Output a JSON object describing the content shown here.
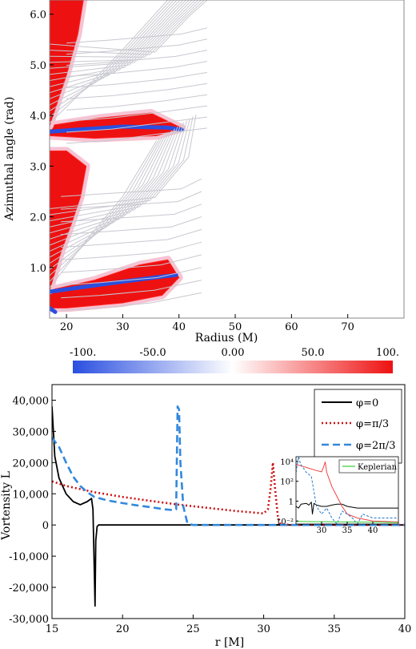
{
  "chart_data": [
    {
      "type": "heatmap",
      "xlabel": "Radius (M)",
      "ylabel": "Azimuthal angle (rad)",
      "xlim": [
        17,
        80
      ],
      "ylim": [
        0,
        6.28
      ],
      "x_ticks": [
        "20",
        "30",
        "40",
        "50",
        "60",
        "70"
      ],
      "x_tick_values": [
        20,
        30,
        40,
        50,
        60,
        70
      ],
      "y_ticks": [
        "1.0",
        "2.0",
        "3.0",
        "4.0",
        "5.0",
        "6.0"
      ],
      "y_tick_values": [
        1,
        2,
        3,
        4,
        5,
        6
      ],
      "colorbar": {
        "range": [
          -100,
          100
        ],
        "ticks": [
          "-100.",
          "-50.0",
          "0.00",
          "50.0",
          "100."
        ],
        "tick_values": [
          -100,
          -50,
          0,
          50,
          100
        ],
        "colors": [
          "#2a4fe0",
          "#ffffff",
          "#ee1111"
        ]
      },
      "regions": [
        {
          "name": "lower-arm",
          "boundary": [
            [
              17,
              0.55
            ],
            [
              25,
              0.75
            ],
            [
              33,
              1.05
            ],
            [
              38,
              1.15
            ],
            [
              40,
              0.8
            ],
            [
              37,
              0.45
            ],
            [
              30,
              0.3
            ],
            [
              20,
              0.2
            ],
            [
              17,
              0.2
            ]
          ],
          "value": 100
        },
        {
          "name": "lower-arm-fill",
          "boundary": [
            [
              17,
              0.55
            ],
            [
              19,
              1.3
            ],
            [
              21,
              1.9
            ],
            [
              22.5,
              2.4
            ],
            [
              23.5,
              3.0
            ],
            [
              20,
              3.3
            ],
            [
              17,
              3.3
            ]
          ],
          "value": 100
        },
        {
          "name": "upper-arm",
          "boundary": [
            [
              17,
              3.8
            ],
            [
              26,
              3.95
            ],
            [
              35,
              4.05
            ],
            [
              40.5,
              3.75
            ],
            [
              36,
              3.6
            ],
            [
              25,
              3.55
            ],
            [
              17,
              3.6
            ]
          ],
          "value": 100
        },
        {
          "name": "upper-arm-fill",
          "boundary": [
            [
              17,
              3.8
            ],
            [
              20,
              4.8
            ],
            [
              22,
              5.6
            ],
            [
              23,
              6.28
            ],
            [
              17,
              6.28
            ]
          ],
          "value": 100
        }
      ]
    },
    {
      "type": "line",
      "xlabel": "r [M]",
      "ylabel": "Vortensity L",
      "xlim": [
        15,
        40
      ],
      "ylim": [
        -30000,
        45000
      ],
      "x_ticks": [
        "15",
        "20",
        "25",
        "30",
        "35",
        "40"
      ],
      "x_tick_values": [
        15,
        20,
        25,
        30,
        35,
        40
      ],
      "y_ticks": [
        "-30,000",
        "-20,000",
        "-10,000",
        "0",
        "10,000",
        "20,000",
        "30,000",
        "40,000"
      ],
      "y_tick_values": [
        -30000,
        -20000,
        -10000,
        0,
        10000,
        20000,
        30000,
        40000
      ],
      "legend_placement": "top-right",
      "series": [
        {
          "name": "φ=0",
          "color": "#000000",
          "dash": "solid",
          "x": [
            15,
            15.2,
            15.5,
            16,
            16.5,
            17,
            17.5,
            17.8,
            17.9,
            18.0,
            18.05,
            18.1,
            18.2,
            18.3,
            19,
            20,
            25,
            30,
            35,
            40
          ],
          "y": [
            38000,
            22000,
            15000,
            10000,
            7500,
            6500,
            7500,
            8500,
            5000,
            -15000,
            -26000,
            -5000,
            -500,
            0,
            0,
            0,
            0,
            0,
            0,
            0
          ]
        },
        {
          "name": "φ=π/3",
          "color": "#cc1111",
          "dash": "dotted",
          "x": [
            15,
            16,
            17,
            18,
            20,
            22,
            24,
            26,
            28,
            30,
            30.3,
            30.5,
            30.65,
            30.8,
            31,
            31.2,
            32,
            35,
            40
          ],
          "y": [
            14000,
            12500,
            11500,
            10500,
            9000,
            7700,
            6500,
            5500,
            4500,
            3700,
            5000,
            12000,
            20000,
            12000,
            3000,
            200,
            0,
            0,
            0
          ]
        },
        {
          "name": "φ=2π/3",
          "color": "#3388dd",
          "dash": "dashed",
          "x": [
            15,
            15.5,
            16,
            16.5,
            17,
            17.5,
            18,
            19,
            20,
            21,
            22,
            23,
            23.5,
            23.8,
            23.9,
            24.0,
            24.1,
            24.3,
            24.6,
            25,
            30,
            35,
            40
          ],
          "y": [
            28000,
            25000,
            20000,
            15500,
            12500,
            10500,
            9000,
            7800,
            7000,
            6300,
            5700,
            5000,
            4800,
            5000,
            38000,
            37000,
            20000,
            6000,
            500,
            0,
            0,
            0,
            0
          ]
        }
      ],
      "inset": {
        "type": "line",
        "xlim": [
          25,
          45
        ],
        "yscale": "log",
        "ylim": [
          0.005,
          30000
        ],
        "x_ticks": [
          "30",
          "35",
          "40"
        ],
        "x_tick_values": [
          30,
          35,
          40
        ],
        "y_ticks": [
          "10⁴",
          "10²",
          "1",
          "10⁻²"
        ],
        "y_tick_values": [
          10000,
          100,
          1,
          0.01
        ],
        "legend": "Keplerian",
        "series": [
          {
            "name": "φ=0",
            "color": "#000000",
            "dash": "solid",
            "x": [
              25,
              25.5,
              26,
              27,
              27.5,
              28,
              28.2,
              28.5,
              29,
              30,
              31,
              32,
              33,
              34,
              35,
              37,
              40,
              45
            ],
            "y": [
              0.3,
              0.2,
              0.5,
              0.6,
              0.4,
              0.8,
              0.05,
              0.6,
              0.4,
              0.3,
              0.3,
              0.4,
              0.5,
              0.5,
              0.3,
              0.2,
              0.2,
              0.2
            ]
          },
          {
            "name": "φ=π/3",
            "color": "#ee4444",
            "dash": "solid",
            "x": [
              25,
              27,
              29,
              30,
              30.4,
              30.7,
              31,
              32,
              33,
              34,
              35,
              37,
              40,
              45
            ],
            "y": [
              5000,
              2500,
              1200,
              900,
              3000,
              9000,
              800,
              30,
              3,
              0.3,
              0.05,
              0.02,
              0.01,
              0.008
            ]
          },
          {
            "name": "φ=2π/3",
            "color": "#2277cc",
            "dash": "dashed",
            "x": [
              25,
              25.5,
              25.9,
              26.2,
              26.5,
              27,
              28,
              29,
              30,
              31,
              32,
              33,
              34,
              35,
              36,
              37,
              38,
              40,
              45
            ],
            "y": [
              800,
              30000,
              5000,
              3000,
              2000,
              800,
              300,
              0.3,
              0.05,
              0.2,
              0.02,
              0.005,
              0.1,
              0.05,
              0.02,
              0.005,
              0.05,
              0.02,
              0.02
            ]
          },
          {
            "name": "Keplerian",
            "color": "#33cc33",
            "dash": "solid",
            "x": [
              25,
              30,
              35,
              40,
              45
            ],
            "y": [
              0.009,
              0.0085,
              0.008,
              0.0075,
              0.007
            ]
          }
        ]
      }
    }
  ]
}
